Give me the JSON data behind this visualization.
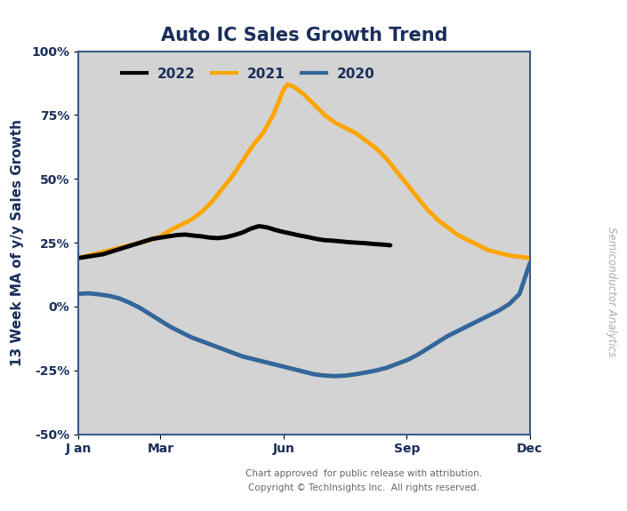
{
  "title": "Auto IC Sales Growth Trend",
  "ylabel": "13 Week MA of y/y Sales Growth",
  "xlabel_ticks": [
    "J an",
    "Mar",
    "Jun",
    "Sep",
    "Dec"
  ],
  "xlabel_tick_pos": [
    0,
    2,
    5,
    8,
    11
  ],
  "ylim": [
    -50,
    100
  ],
  "yticks": [
    -50,
    -25,
    0,
    25,
    50,
    75,
    100
  ],
  "ytick_labels": [
    "-50%",
    "-25%",
    "0%",
    "25%",
    "50%",
    "75%",
    "100%"
  ],
  "background_color": "#d3d3d3",
  "title_color": "#1a2e5a",
  "axis_color": "#1a2e5a",
  "spine_color": "#3a5a8a",
  "right_label": "Semiconductor Analytics",
  "footer_line1": "Chart approved  for public release with attribution.",
  "footer_line2": "Copyright © TechInsights Inc.  All rights reserved.",
  "series": {
    "2022": {
      "color": "#000000",
      "linewidth": 3.5,
      "x": [
        0,
        0.2,
        0.4,
        0.6,
        0.8,
        1.0,
        1.2,
        1.4,
        1.6,
        1.8,
        2.0,
        2.2,
        2.4,
        2.6,
        2.8,
        3.0,
        3.2,
        3.4,
        3.6,
        3.8,
        4.0,
        4.2,
        4.4,
        4.6,
        4.8,
        5.0,
        5.2,
        5.4,
        5.6,
        5.8,
        6.0,
        6.2,
        6.4,
        6.6,
        6.8,
        7.0,
        7.2,
        7.4,
        7.6
      ],
      "y": [
        19,
        19.5,
        20,
        20.5,
        21.5,
        22.5,
        23.5,
        24.5,
        25.5,
        26.5,
        27,
        27.5,
        28,
        28.2,
        27.8,
        27.5,
        27.0,
        26.8,
        27.2,
        28.0,
        29.0,
        30.5,
        31.5,
        31.0,
        30.0,
        29.2,
        28.5,
        27.8,
        27.2,
        26.5,
        26.0,
        25.8,
        25.5,
        25.2,
        25.0,
        24.8,
        24.5,
        24.3,
        24.0
      ]
    },
    "2021": {
      "color": "#FFA500",
      "linewidth": 3.5,
      "x": [
        0,
        0.25,
        0.5,
        0.75,
        1.0,
        1.25,
        1.5,
        1.75,
        2.0,
        2.25,
        2.5,
        2.75,
        3.0,
        3.25,
        3.5,
        3.75,
        4.0,
        4.25,
        4.5,
        4.75,
        5.0,
        5.1,
        5.25,
        5.5,
        5.75,
        6.0,
        6.25,
        6.5,
        6.75,
        7.0,
        7.25,
        7.5,
        7.75,
        8.0,
        8.25,
        8.5,
        8.75,
        9.0,
        9.25,
        9.5,
        9.75,
        10.0,
        10.25,
        10.5,
        10.75,
        11.0
      ],
      "y": [
        19,
        20,
        21,
        22,
        23,
        24,
        25,
        26,
        27.5,
        30,
        32,
        34,
        37,
        41,
        46,
        51,
        57,
        63,
        68,
        75,
        85,
        87,
        86,
        83,
        79,
        75,
        72,
        70,
        68,
        65,
        62,
        58,
        53,
        48,
        43,
        38,
        34,
        31,
        28,
        26,
        24,
        22,
        21,
        20,
        19.5,
        19
      ]
    },
    "2020": {
      "color": "#336699",
      "linewidth": 3.5,
      "x": [
        0,
        0.25,
        0.5,
        0.75,
        1.0,
        1.25,
        1.5,
        1.75,
        2.0,
        2.25,
        2.5,
        2.75,
        3.0,
        3.25,
        3.5,
        3.75,
        4.0,
        4.25,
        4.5,
        4.75,
        5.0,
        5.25,
        5.5,
        5.75,
        6.0,
        6.25,
        6.5,
        6.75,
        7.0,
        7.25,
        7.5,
        7.75,
        8.0,
        8.25,
        8.5,
        8.75,
        9.0,
        9.25,
        9.5,
        9.75,
        10.0,
        10.25,
        10.5,
        10.75,
        11.0
      ],
      "y": [
        5,
        5.2,
        4.8,
        4.2,
        3.2,
        1.5,
        -0.5,
        -3,
        -5.5,
        -8,
        -10,
        -12,
        -13.5,
        -15,
        -16.5,
        -18,
        -19.5,
        -20.5,
        -21.5,
        -22.5,
        -23.5,
        -24.5,
        -25.5,
        -26.5,
        -27,
        -27.2,
        -27,
        -26.5,
        -25.8,
        -25,
        -24,
        -22.5,
        -21,
        -19,
        -16.5,
        -14,
        -11.5,
        -9.5,
        -7.5,
        -5.5,
        -3.5,
        -1.5,
        1,
        5,
        17
      ]
    }
  }
}
